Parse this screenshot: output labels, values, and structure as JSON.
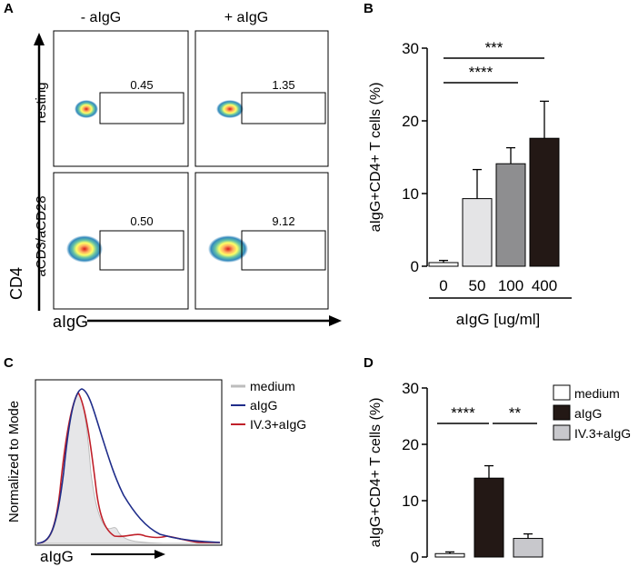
{
  "panels": {
    "A": {
      "label": "A",
      "col_headers": [
        "- aIgG",
        "+ aIgG"
      ],
      "row_labels": [
        "resting",
        "aCD3/aCD28"
      ],
      "gate_values": [
        "0.45",
        "1.35",
        "0.50",
        "9.12"
      ],
      "x_axis": "aIgG",
      "y_axis": "CD4"
    },
    "B": {
      "label": "B"
    },
    "C": {
      "label": "C",
      "x_axis": "aIgG",
      "y_axis": "Normalized to Mode",
      "legend": [
        "medium",
        "aIgG",
        "IV.3+aIgG"
      ],
      "colors": {
        "medium": "#bdbdbd",
        "aIgG": "#1f2d8a",
        "IV.3+aIgG": "#c0202a"
      }
    },
    "D": {
      "label": "D"
    }
  },
  "chart_data": [
    {
      "id": "B",
      "type": "bar",
      "title": "",
      "xlabel": "aIgG [ug/ml]",
      "ylabel": "aIgG+CD4+ T cells (%)",
      "categories": [
        "0",
        "50",
        "100",
        "400"
      ],
      "values": [
        0.5,
        9.3,
        14.1,
        17.6
      ],
      "errors": [
        0.3,
        4.0,
        2.2,
        5.1
      ],
      "colors": [
        "#ffffff",
        "#e4e4e6",
        "#8e8e90",
        "#231815"
      ],
      "ylim": [
        0,
        30
      ],
      "yticks": [
        "0",
        "10",
        "20",
        "30"
      ],
      "significance": [
        "****",
        "***"
      ]
    },
    {
      "id": "D",
      "type": "bar",
      "title": "",
      "xlabel": "",
      "ylabel": "aIgG+CD4+ T cells (%)",
      "categories": [
        "medium",
        "aIgG",
        "IV.3+aIgG"
      ],
      "values": [
        0.6,
        14.0,
        3.3
      ],
      "errors": [
        0.3,
        2.2,
        0.8
      ],
      "colors": [
        "#ffffff",
        "#231815",
        "#c8c8cc"
      ],
      "ylim": [
        0,
        30
      ],
      "yticks": [
        "0",
        "10",
        "20",
        "30"
      ],
      "significance": [
        "****",
        "**"
      ],
      "legend": [
        "medium",
        "aIgG",
        "IV.3+aIgG"
      ]
    }
  ]
}
